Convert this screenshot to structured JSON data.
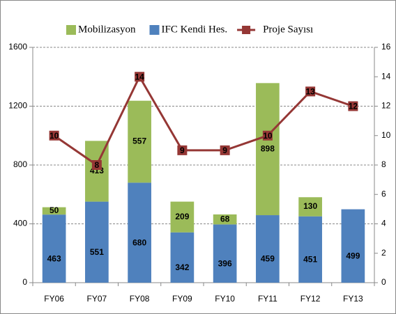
{
  "chart_data": {
    "type": "bar",
    "categories": [
      "FY06",
      "FY07",
      "FY08",
      "FY09",
      "FY10",
      "FY11",
      "FY12",
      "FY13"
    ],
    "series": [
      {
        "name": "Mobilizasyon",
        "type": "bar",
        "color": "#9bbb59",
        "values": [
          50,
          413,
          557,
          209,
          68,
          898,
          130,
          null
        ]
      },
      {
        "name": "IFC Kendi Hes.",
        "type": "bar",
        "color": "#4f81bd",
        "values": [
          463,
          551,
          680,
          342,
          396,
          459,
          451,
          499
        ]
      },
      {
        "name": "Proje Sayısı",
        "type": "line",
        "axis": "y2",
        "color": "#953735",
        "values": [
          10,
          8,
          14,
          9,
          9,
          10,
          13,
          12
        ]
      }
    ],
    "ylim": [
      0,
      1600
    ],
    "yticks": [
      0,
      400,
      800,
      1200,
      1600
    ],
    "y2lim": [
      0,
      16
    ],
    "y2ticks": [
      0,
      2,
      4,
      6,
      8,
      10,
      12,
      14,
      16
    ],
    "grid": true,
    "legend": "top"
  }
}
